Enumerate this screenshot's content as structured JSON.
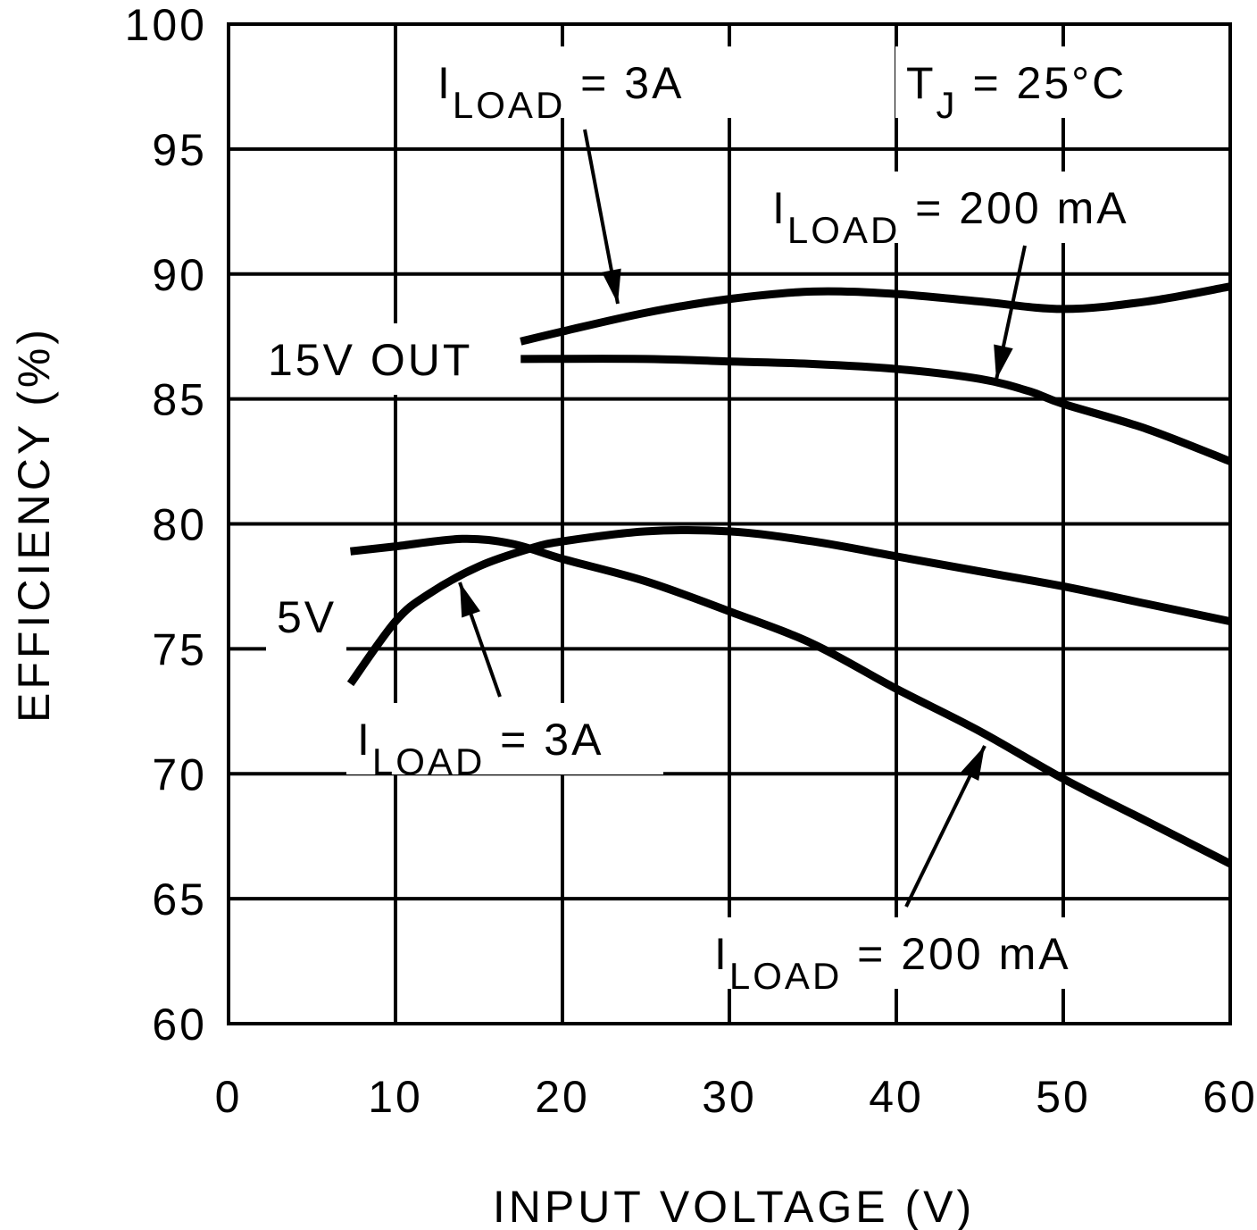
{
  "chart_data": {
    "type": "line",
    "title": "",
    "xlabel": "INPUT VOLTAGE (V)",
    "ylabel": "EFFICIENCY (%)",
    "xlim": [
      0,
      60
    ],
    "ylim": [
      60,
      100
    ],
    "xticks": [
      0,
      10,
      20,
      30,
      40,
      50,
      60
    ],
    "yticks": [
      60,
      65,
      70,
      75,
      80,
      85,
      90,
      95,
      100
    ],
    "grid": true,
    "series": [
      {
        "id": "15v-3a",
        "x": [
          17.5,
          20,
          25,
          30,
          35,
          40,
          45,
          50,
          55,
          60
        ],
        "y": [
          87.3,
          87.7,
          88.45,
          89.0,
          89.3,
          89.2,
          88.9,
          88.6,
          88.9,
          89.5
        ]
      },
      {
        "id": "15v-200ma",
        "x": [
          17.5,
          25,
          30,
          35,
          40,
          45,
          48,
          50,
          55,
          60
        ],
        "y": [
          86.6,
          86.6,
          86.5,
          86.4,
          86.2,
          85.8,
          85.3,
          84.8,
          83.8,
          82.5
        ]
      },
      {
        "id": "5v-3a",
        "x": [
          7.3,
          10,
          12,
          15,
          18,
          20,
          25,
          30,
          35,
          40,
          45,
          50,
          55,
          60
        ],
        "y": [
          73.6,
          76.1,
          77.2,
          78.3,
          79.0,
          79.3,
          79.7,
          79.7,
          79.3,
          78.7,
          78.1,
          77.5,
          76.8,
          76.1
        ]
      },
      {
        "id": "5v-200ma",
        "x": [
          7.3,
          10,
          14,
          17,
          20,
          25,
          30,
          35,
          40,
          45,
          50,
          55,
          60
        ],
        "y": [
          78.9,
          79.1,
          79.4,
          79.2,
          78.6,
          77.7,
          76.5,
          75.2,
          73.4,
          71.7,
          69.8,
          68.1,
          66.4
        ]
      }
    ],
    "annotations": {
      "top_3a": {
        "main": "I",
        "sub": "LOAD",
        "rest": " =  3A"
      },
      "tj": {
        "main": "T",
        "sub": "J",
        "rest": " =  25°C"
      },
      "top_200ma": {
        "main": "I",
        "sub": "LOAD",
        "rest": " =  200 mA"
      },
      "out15": "15V OUT",
      "out5": "5V",
      "bottom_3a": {
        "main": "I",
        "sub": "LOAD",
        "rest": " =  3A"
      },
      "bottom_200ma": {
        "main": "I",
        "sub": "LOAD",
        "rest": " =  200 mA"
      }
    },
    "line_color": "#000000"
  }
}
